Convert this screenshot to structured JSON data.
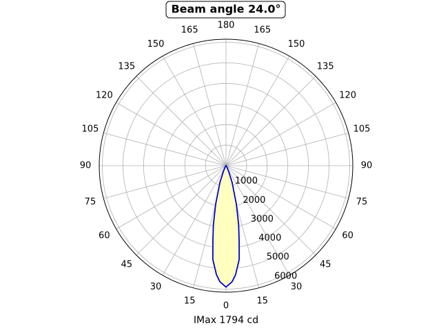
{
  "chart_data": {
    "type": "polar",
    "title": "Beam angle 24.0°",
    "xlabel": "IMax 1794 cd",
    "x": [
      -40,
      -30,
      -25,
      -20,
      -15,
      -12,
      -10,
      -8,
      -5,
      -3,
      0,
      3,
      5,
      8,
      10,
      12,
      15,
      20,
      25,
      30,
      40
    ],
    "series": [
      {
        "color": "#0000cc",
        "fill": "#ffffc0",
        "values": [
          0,
          80,
          290,
          860,
          1950,
          2950,
          3660,
          4600,
          5320,
          5650,
          5900,
          5650,
          5320,
          4600,
          3660,
          2950,
          1950,
          860,
          290,
          80,
          0
        ]
      }
    ],
    "ylim": [
      0,
      6150
    ],
    "yticks": [
      1000,
      2000,
      3000,
      4000,
      5000,
      6000
    ],
    "xticks": [
      0,
      15,
      30,
      45,
      60,
      75,
      90,
      105,
      120,
      135,
      150,
      165,
      180,
      {
        "value": -15,
        "label": "15"
      },
      {
        "value": -30,
        "label": "30"
      },
      {
        "value": -45,
        "label": "45"
      },
      {
        "value": -60,
        "label": "60"
      },
      {
        "value": -75,
        "label": "75"
      },
      {
        "value": -90,
        "label": "90"
      },
      {
        "value": -105,
        "label": "105"
      },
      {
        "value": -120,
        "label": "120"
      },
      {
        "value": -135,
        "label": "135"
      },
      {
        "value": -150,
        "label": "150"
      },
      {
        "value": -165,
        "label": "165"
      }
    ],
    "grid": true
  }
}
